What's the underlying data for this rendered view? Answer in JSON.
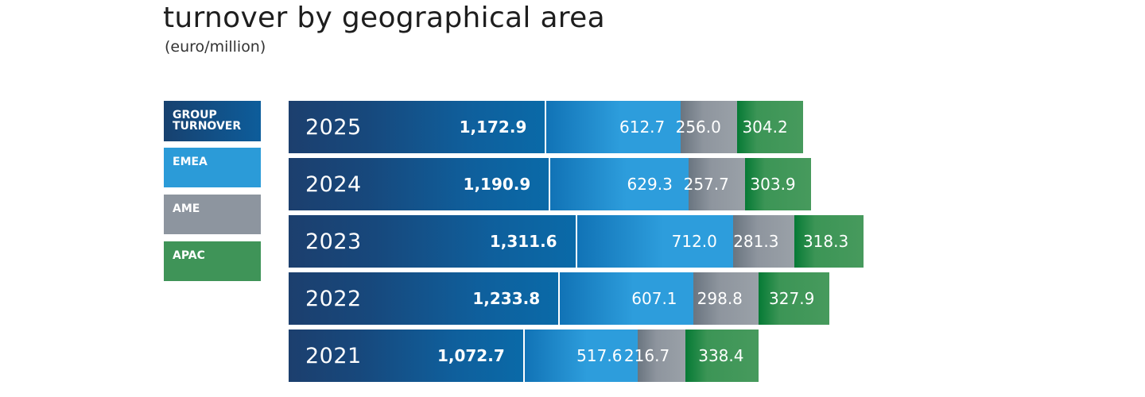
{
  "chart_data": {
    "type": "bar",
    "title": "turnover by geographical area",
    "subtitle": "(euro/million)",
    "orientation": "horizontal",
    "legend_position": "left",
    "legend": [
      {
        "key": "group",
        "label": "GROUP\nTURNOVER",
        "color": "#0d5d9b"
      },
      {
        "key": "emea",
        "label": "EMEA",
        "color": "#2b9bd8"
      },
      {
        "key": "ame",
        "label": "AME",
        "color": "#8d959f"
      },
      {
        "key": "apac",
        "label": "APAC",
        "color": "#3f9458"
      }
    ],
    "categories": [
      "2025",
      "2024",
      "2023",
      "2022",
      "2021"
    ],
    "series": [
      {
        "key": "group",
        "values": [
          1172.9,
          1190.9,
          1311.6,
          1233.8,
          1072.7
        ],
        "labels": [
          "1,172.9",
          "1,190.9",
          "1,311.6",
          "1,233.8",
          "1,072.7"
        ]
      },
      {
        "key": "emea",
        "values": [
          612.7,
          629.3,
          712.0,
          607.1,
          517.6
        ],
        "labels": [
          "612.7",
          "629.3",
          "712.0",
          "607.1",
          "517.6"
        ]
      },
      {
        "key": "ame",
        "values": [
          256.0,
          257.7,
          281.3,
          298.8,
          216.7
        ],
        "labels": [
          "256.0",
          "257.7",
          "281.3",
          "298.8",
          "216.7"
        ]
      },
      {
        "key": "apac",
        "values": [
          304.2,
          303.9,
          318.3,
          327.9,
          338.4
        ],
        "labels": [
          "304.2",
          "303.9",
          "318.3",
          "327.9",
          "338.4"
        ]
      }
    ]
  }
}
